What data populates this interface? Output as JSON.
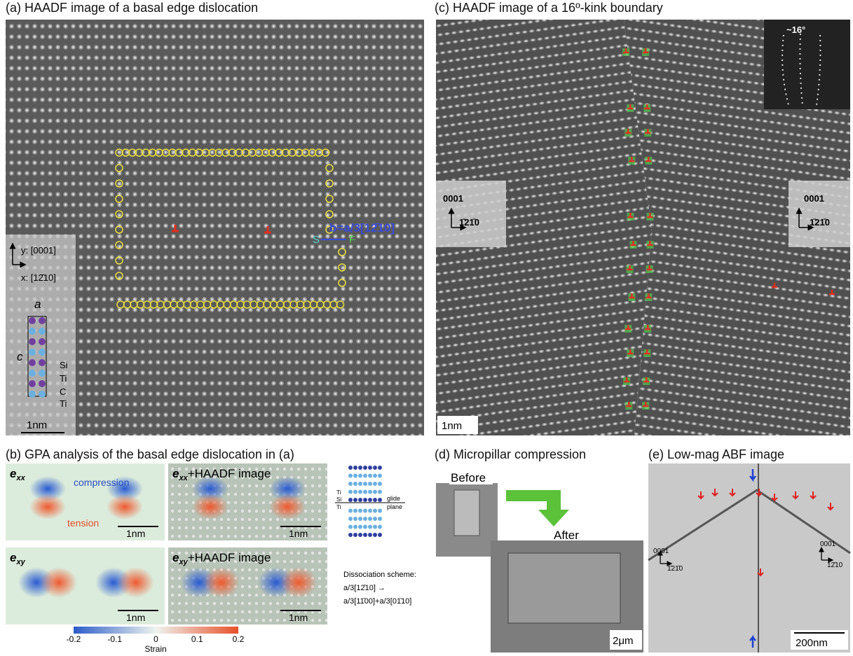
{
  "panels": {
    "a": {
      "title": "(a) HAADF image of a basal edge dislocation",
      "axis_y": "y: [0001]",
      "axis_x": "x: [12̄10]",
      "lattice_a": "a",
      "lattice_c": "c",
      "atoms": [
        "Si",
        "Ti",
        "C",
        "Ti"
      ],
      "scale": "1nm",
      "burgers": "b=a/3[12̄10]",
      "start": "S",
      "finish": "F"
    },
    "b": {
      "title": "(b) GPA analysis of the basal edge dislocation in (a)",
      "maps": [
        {
          "symbol": "e",
          "sub": "xx",
          "scale": "1nm"
        },
        {
          "symbol": "e",
          "sub": "xx",
          "suffix": "+HAADF image",
          "scale": "1nm"
        },
        {
          "symbol": "e",
          "sub": "xy",
          "scale": "1nm"
        },
        {
          "symbol": "e",
          "sub": "xy",
          "suffix": "+HAADF image",
          "scale": "1nm"
        }
      ],
      "compression": "compression",
      "tension": "tension",
      "schematic_labels": [
        "Ti",
        "Si",
        "Ti"
      ],
      "glide_plane": [
        "glide",
        "plane"
      ],
      "dissociation": [
        "Dissociation scheme:",
        "a/3[12̄10] →",
        "a/3[11̄00]+a/3[01̄10]"
      ],
      "colorbar": {
        "ticks": [
          -0.2,
          -0.1,
          0,
          0.1,
          0.2
        ],
        "label": "Strain"
      }
    },
    "c": {
      "title": "(c) HAADF image of a 16º-kink boundary",
      "angle": "~16°",
      "insets": [
        {
          "up": "0001",
          "right": "1̄21̄0"
        },
        {
          "up": "0001",
          "right": "1̄21̄0"
        }
      ],
      "scale": "1nm"
    },
    "d": {
      "title": "(d) Micropillar compression",
      "before": "Before",
      "after": "After",
      "scale": "2μm"
    },
    "e": {
      "title": "(e) Low-mag ABF image",
      "insets": [
        {
          "up": "0001",
          "right": "1̄21̄0"
        },
        {
          "up": "0001",
          "right": "12̄10"
        }
      ],
      "scale": "200nm"
    }
  }
}
